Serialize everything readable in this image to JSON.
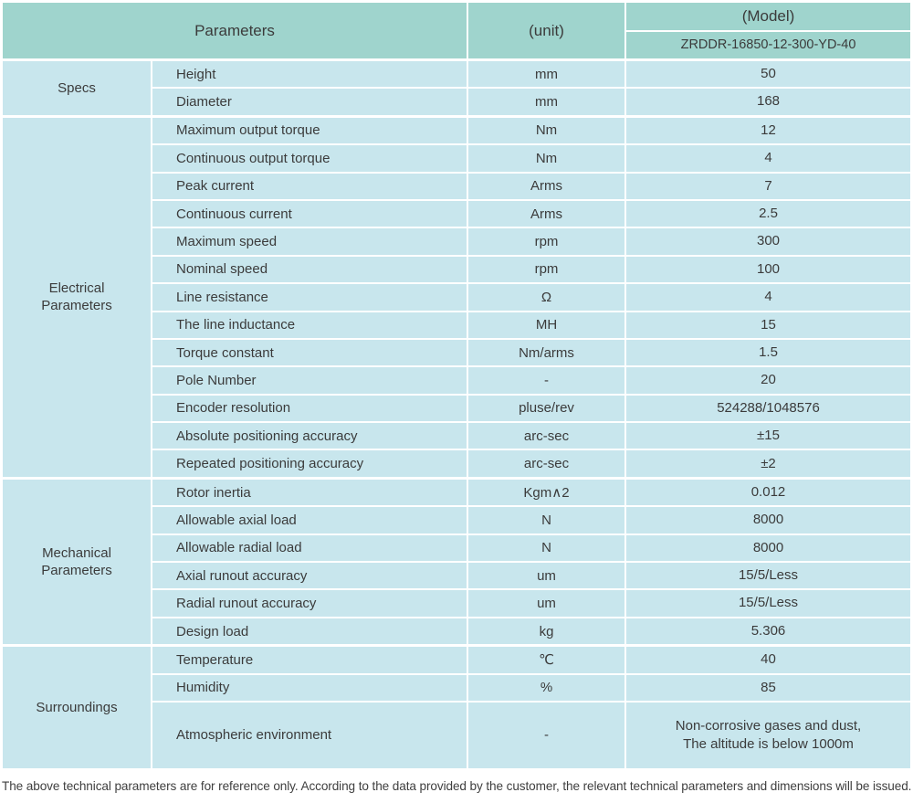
{
  "header": {
    "parameters_label": "Parameters",
    "unit_label": "(unit)",
    "model_label": "(Model)",
    "model_value": "ZRDDR-16850-12-300-YD-40"
  },
  "sections": [
    {
      "label": "Specs",
      "rows": [
        {
          "param": "Height",
          "unit": "mm",
          "value": "50"
        },
        {
          "param": "Diameter",
          "unit": "mm",
          "value": "168"
        }
      ]
    },
    {
      "label": "Electrical Parameters",
      "rows": [
        {
          "param": "Maximum output torque",
          "unit": "Nm",
          "value": "12"
        },
        {
          "param": "Continuous output torque",
          "unit": "Nm",
          "value": "4"
        },
        {
          "param": "Peak current",
          "unit": "Arms",
          "value": "7"
        },
        {
          "param": "Continuous current",
          "unit": "Arms",
          "value": "2.5"
        },
        {
          "param": "Maximum speed",
          "unit": "rpm",
          "value": "300"
        },
        {
          "param": "Nominal speed",
          "unit": "rpm",
          "value": "100"
        },
        {
          "param": "Line resistance",
          "unit": "Ω",
          "value": "4"
        },
        {
          "param": "The line inductance",
          "unit": "MH",
          "value": "15"
        },
        {
          "param": "Torque constant",
          "unit": "Nm/arms",
          "value": "1.5"
        },
        {
          "param": "Pole Number",
          "unit": "-",
          "value": "20"
        },
        {
          "param": "Encoder resolution",
          "unit": "pluse/rev",
          "value": "524288/1048576"
        },
        {
          "param": "Absolute positioning accuracy",
          "unit": "arc-sec",
          "value": "±15"
        },
        {
          "param": "Repeated positioning accuracy",
          "unit": "arc-sec",
          "value": "±2"
        }
      ]
    },
    {
      "label": "Mechanical Parameters",
      "rows": [
        {
          "param": "Rotor inertia",
          "unit": "Kgm∧2",
          "value": "0.012"
        },
        {
          "param": "Allowable axial load",
          "unit": "N",
          "value": "8000"
        },
        {
          "param": "Allowable radial load",
          "unit": "N",
          "value": "8000"
        },
        {
          "param": "Axial runout accuracy",
          "unit": "um",
          "value": "15/5/Less"
        },
        {
          "param": "Radial runout accuracy",
          "unit": "um",
          "value": "15/5/Less"
        },
        {
          "param": "Design load",
          "unit": "kg",
          "value": "5.306"
        }
      ]
    },
    {
      "label": "Surroundings",
      "rows": [
        {
          "param": "Temperature",
          "unit": "℃",
          "value": "40"
        },
        {
          "param": "Humidity",
          "unit": "%",
          "value": "85"
        },
        {
          "param": "Atmospheric environment",
          "unit": "-",
          "value": "Non-corrosive gases and dust,\nThe altitude is below 1000m"
        }
      ]
    }
  ],
  "footer": {
    "note": "The above technical parameters are for reference only. According to the data provided by the customer, the relevant technical parameters and dimensions will be issued."
  },
  "colors": {
    "header_bg": "#9fd4cd",
    "cell_bg": "#c8e6ed",
    "divider": "#ffffff",
    "text": "#3b3b3b"
  }
}
